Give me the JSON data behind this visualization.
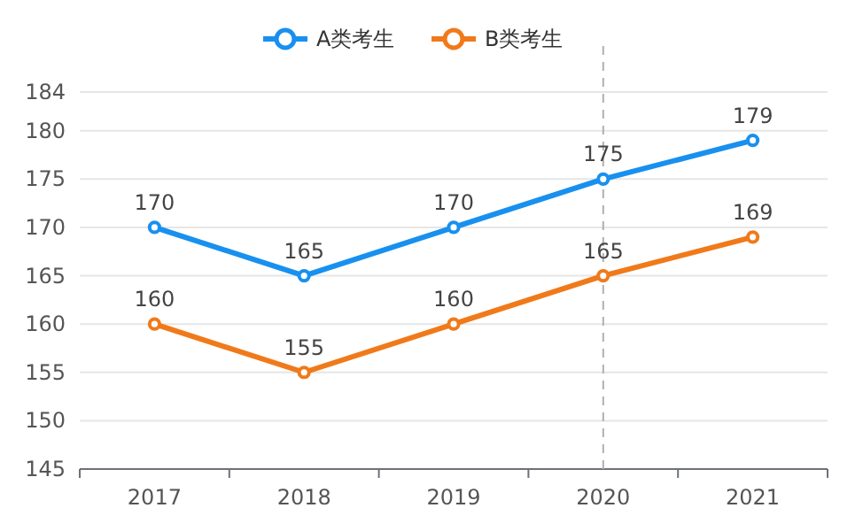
{
  "chart_data": {
    "type": "line",
    "categories": [
      "2017",
      "2018",
      "2019",
      "2020",
      "2021"
    ],
    "series": [
      {
        "name": "A类考生",
        "color": "#1890ef",
        "values": [
          170,
          165,
          170,
          175,
          179
        ]
      },
      {
        "name": "B类考生",
        "color": "#f07a1a",
        "values": [
          160,
          155,
          160,
          165,
          169
        ]
      }
    ],
    "ylim": [
      145,
      184
    ],
    "yticks": [
      145,
      150,
      155,
      160,
      165,
      170,
      175,
      180,
      184
    ],
    "grid": "y",
    "legend": "top",
    "marker": "circle",
    "line_style": "solid",
    "data_labels": true,
    "ref_lines": [
      {
        "axis": "x",
        "value": "2020",
        "color": "#b0b0b0",
        "line_style": "dashed"
      }
    ]
  }
}
